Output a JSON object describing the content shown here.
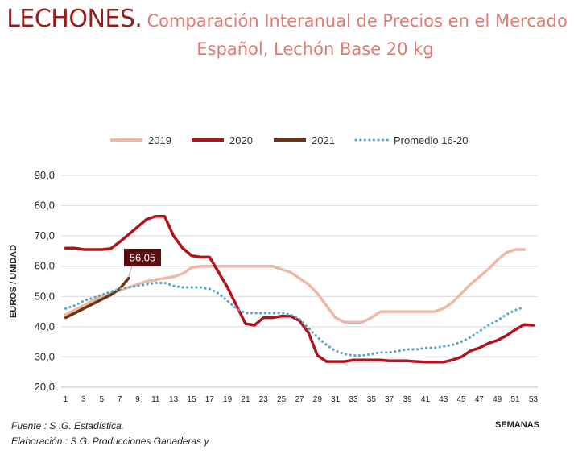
{
  "header": {
    "title_main": "LECHONES.",
    "title_sub_line1": "Comparación Interanual de Precios en el Mercado",
    "title_sub_line2": "Español, Lechón Base 20 kg"
  },
  "footer": {
    "source_line1": "Fuente :  S .G. Estadística.",
    "source_line2": "Elaboración : S.G. Producciones Ganaderas y"
  },
  "chart_data": {
    "type": "line",
    "title": "",
    "xlabel": "SEMANAS",
    "ylabel": "EUROS / UNIDAD",
    "ylim": [
      20,
      90
    ],
    "xlim": [
      1,
      53
    ],
    "y_ticks": [
      "20,0",
      "30,0",
      "40,0",
      "50,0",
      "60,0",
      "70,0",
      "80,0",
      "90,0"
    ],
    "x_ticks": [
      "1",
      "3",
      "5",
      "7",
      "9",
      "11",
      "13",
      "15",
      "17",
      "19",
      "21",
      "23",
      "25",
      "27",
      "29",
      "31",
      "33",
      "35",
      "37",
      "39",
      "41",
      "43",
      "45",
      "47",
      "49",
      "51",
      "53"
    ],
    "grid": "horizontal",
    "legend_position": "top",
    "annotation": {
      "label": "56,05",
      "week": 8,
      "value": 56.05
    },
    "series": [
      {
        "name": "2019",
        "color": "#f0b7a4",
        "style": "solid",
        "weeks": [
          1,
          2,
          3,
          4,
          5,
          6,
          7,
          8,
          9,
          10,
          11,
          12,
          13,
          14,
          15,
          16,
          17,
          18,
          19,
          20,
          21,
          22,
          23,
          24,
          25,
          26,
          27,
          28,
          29,
          30,
          31,
          32,
          33,
          34,
          35,
          36,
          37,
          38,
          39,
          40,
          41,
          42,
          43,
          44,
          45,
          46,
          47,
          48,
          49,
          50,
          51,
          52
        ],
        "values": [
          44,
          45.5,
          47,
          48.5,
          50,
          51,
          52,
          53,
          54,
          55,
          55.5,
          56,
          56.5,
          57.5,
          59.5,
          60,
          60,
          60,
          60,
          60,
          60,
          60,
          60,
          60,
          59,
          58,
          56,
          54,
          51,
          47,
          43,
          41.5,
          41.5,
          41.5,
          43,
          45,
          45,
          45,
          45,
          45,
          45,
          45,
          46,
          48,
          51,
          54,
          56.5,
          59,
          62,
          64.5,
          65.5,
          65.5
        ]
      },
      {
        "name": "2020",
        "color": "#b0141a",
        "style": "solid",
        "weeks": [
          1,
          2,
          3,
          4,
          5,
          6,
          7,
          8,
          9,
          10,
          11,
          12,
          13,
          14,
          15,
          16,
          17,
          18,
          19,
          20,
          21,
          22,
          23,
          24,
          25,
          26,
          27,
          28,
          29,
          30,
          31,
          32,
          33,
          34,
          35,
          36,
          37,
          38,
          39,
          40,
          41,
          42,
          43,
          44,
          45,
          46,
          47,
          48,
          49,
          50,
          51,
          52,
          53
        ],
        "values": [
          66,
          66,
          65.5,
          65.5,
          65.5,
          65.8,
          68,
          70.5,
          73,
          75.5,
          76.5,
          76.5,
          70,
          66,
          63.5,
          63,
          63,
          58,
          53,
          47,
          41,
          40.5,
          43,
          43,
          43.5,
          43.5,
          42,
          38,
          30.5,
          28.5,
          28.5,
          28.5,
          29,
          29,
          29,
          29,
          28.7,
          28.7,
          28.7,
          28.5,
          28.3,
          28.3,
          28.3,
          29,
          30,
          32,
          33,
          34.5,
          35.5,
          37,
          39,
          40.7,
          40.5
        ]
      },
      {
        "name": "2021",
        "color": "#6b3312",
        "style": "solid",
        "weeks": [
          1,
          2,
          3,
          4,
          5,
          6,
          7,
          8
        ],
        "values": [
          43,
          44.5,
          46,
          47.5,
          49,
          50.5,
          52.5,
          56.05
        ]
      },
      {
        "name": "Promedio 16-20",
        "color": "#5aa5c8",
        "style": "dotted",
        "weeks": [
          1,
          2,
          3,
          4,
          5,
          6,
          7,
          8,
          9,
          10,
          11,
          12,
          13,
          14,
          15,
          16,
          17,
          18,
          19,
          20,
          21,
          22,
          23,
          24,
          25,
          26,
          27,
          28,
          29,
          30,
          31,
          32,
          33,
          34,
          35,
          36,
          37,
          38,
          39,
          40,
          41,
          42,
          43,
          44,
          45,
          46,
          47,
          48,
          49,
          50,
          51,
          52
        ],
        "values": [
          46,
          47,
          48.5,
          49.5,
          50.5,
          51.5,
          52.5,
          53,
          53.5,
          54,
          54.5,
          54.5,
          53.5,
          53,
          53,
          53,
          52.5,
          51,
          48.5,
          46,
          44.5,
          44.5,
          44.5,
          44.5,
          44.5,
          44,
          42.5,
          39.5,
          36.5,
          34,
          32,
          31,
          30.5,
          30.5,
          31,
          31.5,
          31.5,
          32,
          32.5,
          32.5,
          33,
          33,
          33.5,
          34,
          35,
          36.5,
          38.5,
          40.5,
          42,
          44,
          45.5,
          46.5
        ]
      }
    ]
  }
}
